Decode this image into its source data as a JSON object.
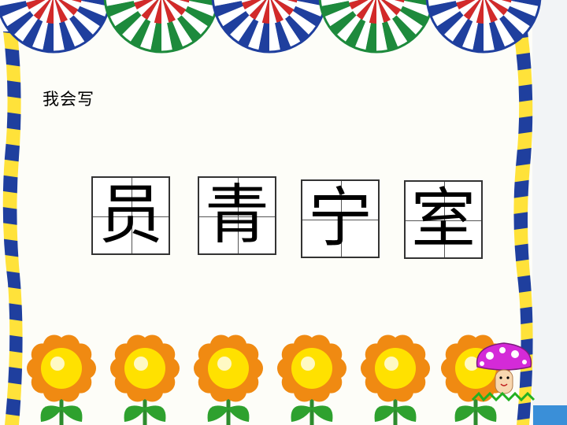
{
  "heading": "我会写",
  "characters": [
    "员",
    "青",
    "宁",
    "室"
  ],
  "colors": {
    "background": "#fdfdf8",
    "fan_blue": "#1f3f9e",
    "fan_green": "#1d8a3c",
    "fan_red": "#d22a2a",
    "flower_petal": "#f08a12",
    "flower_center": "#ffe100",
    "mushroom_cap": "#d42ad8",
    "side_tab": "#3a8fd8"
  },
  "decorations": {
    "top_fans": [
      "blue",
      "green",
      "blue",
      "green",
      "blue"
    ],
    "flowers": 6,
    "mushroom": true
  }
}
